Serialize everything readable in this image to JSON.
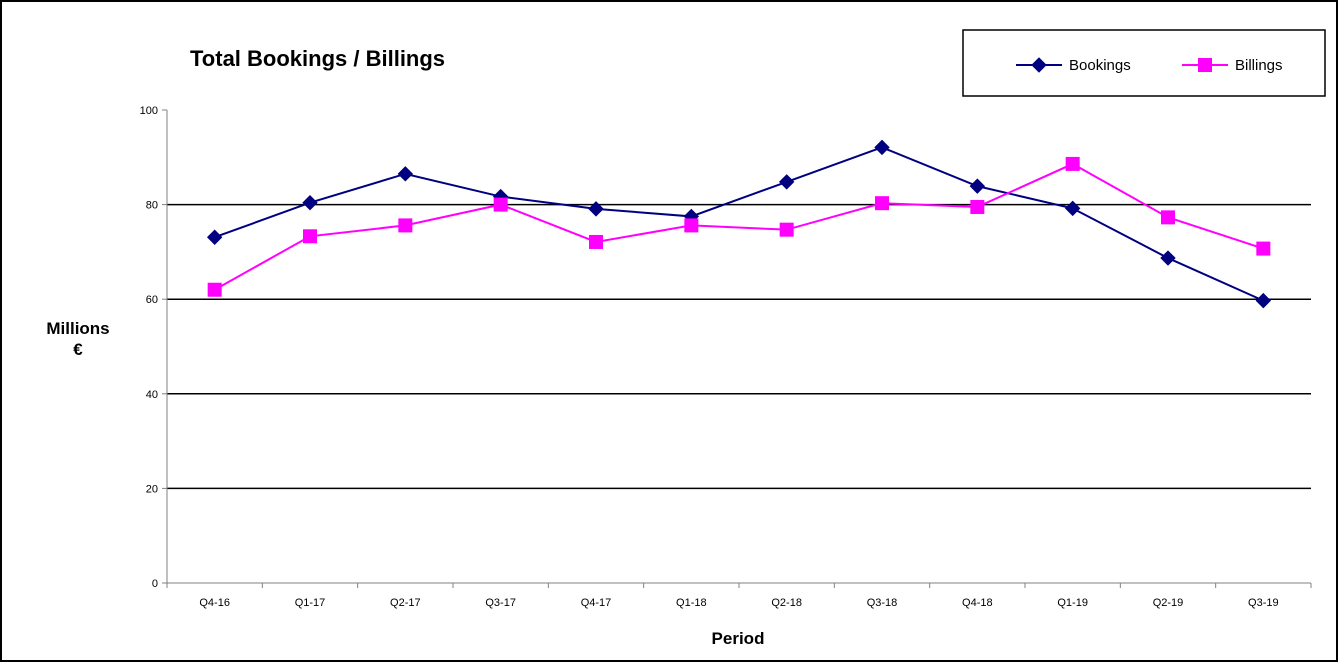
{
  "chart_data": {
    "type": "line",
    "title": "Total Bookings / Billings",
    "xlabel": "Period",
    "ylabel": [
      "Millions",
      "€"
    ],
    "categories": [
      "Q4-16",
      "Q1-17",
      "Q2-17",
      "Q3-17",
      "Q4-17",
      "Q1-18",
      "Q2-18",
      "Q3-18",
      "Q4-18",
      "Q1-19",
      "Q2-19",
      "Q3-19"
    ],
    "ylim": [
      0,
      100
    ],
    "yticks": [
      0,
      20,
      40,
      60,
      80,
      100
    ],
    "grid": true,
    "legend_position": "top-right",
    "series": [
      {
        "name": "Bookings",
        "color": "#000080",
        "marker": "diamond",
        "values": [
          73.1,
          80.4,
          86.5,
          81.7,
          79.1,
          77.5,
          84.8,
          92.1,
          83.9,
          79.2,
          68.7,
          59.7
        ]
      },
      {
        "name": "Billings",
        "color": "#FF00FF",
        "marker": "square",
        "values": [
          62.0,
          73.3,
          75.6,
          80.0,
          72.1,
          75.6,
          74.7,
          80.3,
          79.5,
          88.6,
          77.3,
          70.7
        ]
      }
    ]
  }
}
